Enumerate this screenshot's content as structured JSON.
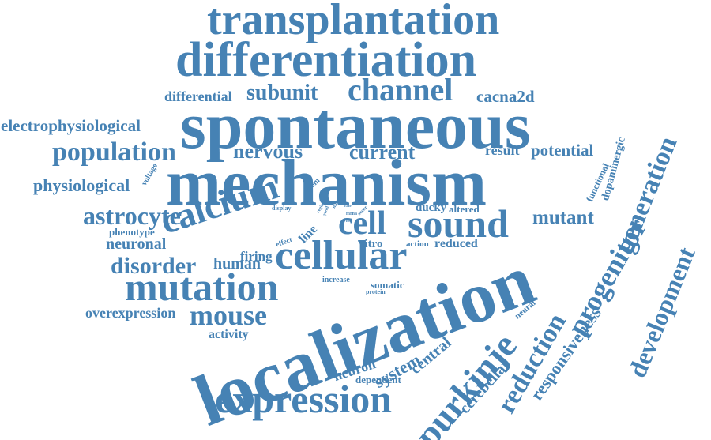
{
  "color": "#4682b4",
  "words": [
    "transplantation",
    "differentiation",
    "spontaneous",
    "mechanism",
    "localization",
    "channel",
    "subunit",
    "differential",
    "cacna2d",
    "electrophysiological",
    "population",
    "nervous",
    "current",
    "result",
    "potential",
    "physiological",
    "voltage",
    "stem",
    "display",
    "cerebellar",
    "mutant",
    "astrocyte",
    "calcium",
    "cell",
    "sound",
    "ducky",
    "altered",
    "functional",
    "dopaminergic",
    "generation",
    "development",
    "phenotype",
    "neuronal",
    "effect",
    "line",
    "vitro",
    "action",
    "reduced",
    "disorder",
    "human",
    "firing",
    "cellular",
    "mutation",
    "increase",
    "protein",
    "somatic",
    "progenitor",
    "neural",
    "reduction",
    "responsiveness",
    "overexpression",
    "mouse",
    "activity",
    "central",
    "system",
    "neuron",
    "dependent",
    "purkinje",
    "expression",
    "region",
    "mrna",
    "occur",
    "loss",
    "rate",
    "mice",
    "yield"
  ]
}
